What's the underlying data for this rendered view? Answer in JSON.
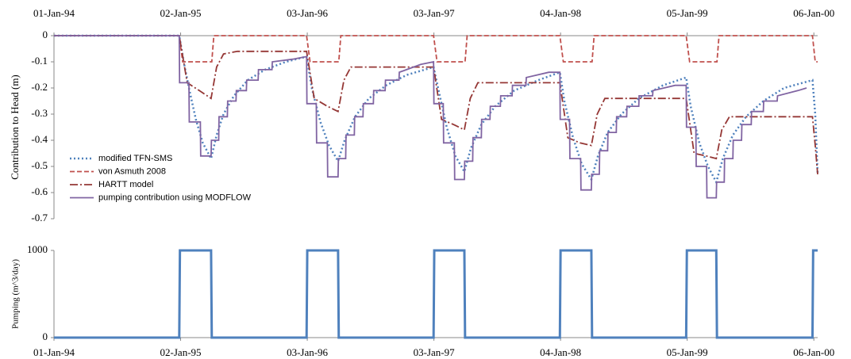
{
  "chart_data": [
    {
      "type": "line",
      "ylabel": "Contribution to Head (m)",
      "xaxis_position": "top",
      "legend": "lower left",
      "xlim": [
        0,
        2207
      ],
      "ylim": [
        -0.7,
        0
      ],
      "xticks": [
        {
          "value": 0,
          "label": "01-Jan-94"
        },
        {
          "value": 366,
          "label": "02-Jan-95"
        },
        {
          "value": 732,
          "label": "03-Jan-96"
        },
        {
          "value": 1098,
          "label": "03-Jan-97"
        },
        {
          "value": 1464,
          "label": "04-Jan-98"
        },
        {
          "value": 1830,
          "label": "05-Jan-99"
        },
        {
          "value": 2196,
          "label": "06-Jan-00"
        }
      ],
      "yticks": [
        0,
        -0.1,
        -0.2,
        -0.3,
        -0.4,
        -0.5,
        -0.6,
        -0.7
      ],
      "series": [
        {
          "name": "modified TFN-SMS",
          "color": "#4f81bd",
          "dash": "dotted",
          "x": [
            0,
            362,
            375,
            390,
            410,
            430,
            454,
            470,
            490,
            520,
            560,
            610,
            670,
            730,
            745,
            770,
            795,
            821,
            840,
            870,
            910,
            960,
            1020,
            1097,
            1110,
            1135,
            1160,
            1186,
            1205,
            1235,
            1275,
            1330,
            1400,
            1462,
            1475,
            1500,
            1525,
            1553,
            1572,
            1600,
            1640,
            1690,
            1760,
            1827,
            1840,
            1865,
            1890,
            1914,
            1933,
            1962,
            2000,
            2050,
            2110,
            2192,
            2200,
            2207
          ],
          "values": [
            0,
            0,
            -0.1,
            -0.2,
            -0.32,
            -0.41,
            -0.47,
            -0.38,
            -0.3,
            -0.23,
            -0.17,
            -0.13,
            -0.1,
            -0.08,
            -0.2,
            -0.33,
            -0.42,
            -0.48,
            -0.4,
            -0.31,
            -0.24,
            -0.19,
            -0.15,
            -0.12,
            -0.2,
            -0.35,
            -0.46,
            -0.52,
            -0.43,
            -0.34,
            -0.27,
            -0.21,
            -0.17,
            -0.14,
            -0.25,
            -0.39,
            -0.49,
            -0.55,
            -0.46,
            -0.37,
            -0.3,
            -0.24,
            -0.19,
            -0.16,
            -0.27,
            -0.41,
            -0.5,
            -0.56,
            -0.47,
            -0.38,
            -0.31,
            -0.25,
            -0.2,
            -0.17,
            -0.3,
            -0.53
          ]
        },
        {
          "name": "von Asmuth 2008",
          "color": "#c0504d",
          "dash": "dashed",
          "x": [
            0,
            362,
            372,
            456,
            462,
            730,
            740,
            823,
            829,
            1097,
            1107,
            1188,
            1194,
            1462,
            1472,
            1555,
            1561,
            1827,
            1837,
            1916,
            1922,
            2192,
            2200,
            2207
          ],
          "values": [
            0,
            0,
            -0.1,
            -0.1,
            0,
            0,
            -0.1,
            -0.1,
            0,
            0,
            -0.1,
            -0.1,
            0,
            0,
            -0.1,
            -0.1,
            0,
            0,
            -0.1,
            -0.1,
            0,
            0,
            -0.1,
            -0.1
          ]
        },
        {
          "name": "HARTT model",
          "color": "#953735",
          "dash": "dashdot",
          "x": [
            0,
            362,
            385,
            420,
            454,
            470,
            490,
            530,
            730,
            752,
            790,
            821,
            838,
            858,
            1097,
            1120,
            1155,
            1186,
            1203,
            1225,
            1462,
            1485,
            1520,
            1553,
            1570,
            1592,
            1827,
            1850,
            1885,
            1914,
            1930,
            1952,
            2192,
            2200,
            2207
          ],
          "values": [
            0,
            0,
            -0.18,
            -0.21,
            -0.24,
            -0.12,
            -0.07,
            -0.06,
            -0.06,
            -0.24,
            -0.27,
            -0.29,
            -0.17,
            -0.12,
            -0.12,
            -0.32,
            -0.34,
            -0.36,
            -0.24,
            -0.18,
            -0.18,
            -0.39,
            -0.41,
            -0.42,
            -0.3,
            -0.24,
            -0.24,
            -0.45,
            -0.46,
            -0.47,
            -0.36,
            -0.31,
            -0.31,
            -0.42,
            -0.53
          ]
        },
        {
          "name": "pumping contribution using MODFLOW",
          "color": "#8064a2",
          "dash": "solid",
          "x": [
            0,
            362,
            363,
            390,
            391,
            423,
            424,
            454,
            455,
            476,
            477,
            501,
            502,
            526,
            527,
            556,
            557,
            590,
            591,
            630,
            631,
            690,
            730,
            731,
            758,
            759,
            790,
            791,
            821,
            822,
            843,
            844,
            868,
            869,
            893,
            894,
            923,
            924,
            957,
            958,
            997,
            998,
            1060,
            1097,
            1098,
            1125,
            1126,
            1157,
            1158,
            1186,
            1187,
            1210,
            1211,
            1235,
            1236,
            1260,
            1261,
            1290,
            1291,
            1324,
            1325,
            1364,
            1365,
            1430,
            1462,
            1463,
            1490,
            1491,
            1522,
            1523,
            1553,
            1554,
            1576,
            1577,
            1600,
            1601,
            1625,
            1626,
            1655,
            1656,
            1690,
            1691,
            1730,
            1731,
            1795,
            1827,
            1828,
            1855,
            1856,
            1886,
            1887,
            1914,
            1915,
            1937,
            1938,
            1962,
            1963,
            1987,
            1988,
            2015,
            2016,
            2050,
            2051,
            2090,
            2091,
            2150,
            2175
          ],
          "values": [
            0,
            0,
            -0.18,
            -0.18,
            -0.33,
            -0.33,
            -0.46,
            -0.46,
            -0.4,
            -0.4,
            -0.31,
            -0.31,
            -0.25,
            -0.25,
            -0.21,
            -0.21,
            -0.17,
            -0.17,
            -0.13,
            -0.13,
            -0.1,
            -0.09,
            -0.08,
            -0.26,
            -0.26,
            -0.41,
            -0.41,
            -0.54,
            -0.54,
            -0.47,
            -0.47,
            -0.38,
            -0.38,
            -0.31,
            -0.31,
            -0.26,
            -0.26,
            -0.21,
            -0.21,
            -0.17,
            -0.17,
            -0.14,
            -0.11,
            -0.1,
            -0.26,
            -0.26,
            -0.41,
            -0.41,
            -0.55,
            -0.55,
            -0.48,
            -0.48,
            -0.39,
            -0.39,
            -0.32,
            -0.32,
            -0.27,
            -0.27,
            -0.23,
            -0.23,
            -0.19,
            -0.19,
            -0.16,
            -0.14,
            -0.14,
            -0.32,
            -0.32,
            -0.47,
            -0.47,
            -0.59,
            -0.59,
            -0.53,
            -0.53,
            -0.44,
            -0.44,
            -0.37,
            -0.37,
            -0.31,
            -0.31,
            -0.27,
            -0.27,
            -0.23,
            -0.23,
            -0.21,
            -0.19,
            -0.19,
            -0.35,
            -0.35,
            -0.5,
            -0.5,
            -0.62,
            -0.62,
            -0.56,
            -0.56,
            -0.47,
            -0.47,
            -0.4,
            -0.4,
            -0.34,
            -0.34,
            -0.29,
            -0.29,
            -0.25,
            -0.25,
            -0.23,
            -0.21,
            -0.2
          ]
        }
      ]
    },
    {
      "type": "line",
      "ylabel": "Pumping (m^3/day)",
      "xaxis_position": "bottom",
      "xlim": [
        0,
        2207
      ],
      "ylim": [
        0,
        1000
      ],
      "xticks": [
        {
          "value": 0,
          "label": "01-Jan-94"
        },
        {
          "value": 366,
          "label": "02-Jan-95"
        },
        {
          "value": 732,
          "label": "03-Jan-96"
        },
        {
          "value": 1098,
          "label": "03-Jan-97"
        },
        {
          "value": 1464,
          "label": "04-Jan-98"
        },
        {
          "value": 1830,
          "label": "05-Jan-99"
        },
        {
          "value": 2196,
          "label": "06-Jan-00"
        }
      ],
      "yticks": [
        0,
        1000
      ],
      "series": [
        {
          "color": "#4f81bd",
          "dash": "solid",
          "x": [
            0,
            362,
            364,
            454,
            456,
            730,
            732,
            821,
            823,
            1097,
            1099,
            1186,
            1188,
            1462,
            1464,
            1553,
            1555,
            1827,
            1829,
            1914,
            1916,
            2192,
            2194,
            2207
          ],
          "values": [
            0,
            0,
            1000,
            1000,
            0,
            0,
            1000,
            1000,
            0,
            0,
            1000,
            1000,
            0,
            0,
            1000,
            1000,
            0,
            0,
            1000,
            1000,
            0,
            0,
            1000,
            1000
          ]
        }
      ]
    }
  ]
}
